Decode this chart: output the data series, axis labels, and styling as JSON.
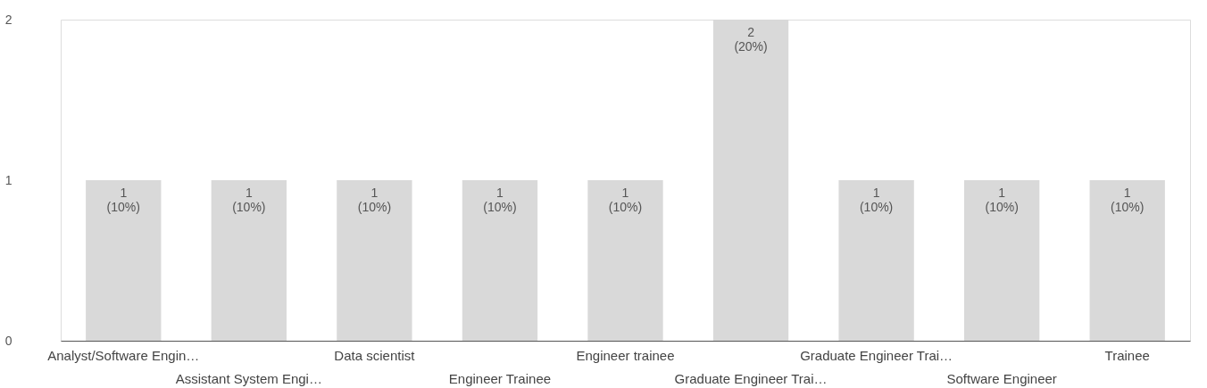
{
  "chart_data": {
    "type": "bar",
    "categories": [
      "Analyst/Software Engin…",
      "Assistant System Engi…",
      "Data scientist",
      "Engineer Trainee",
      "Engineer trainee",
      "Graduate Engineer Trai…",
      "Graduate Engineer Trai…",
      "Software Engineer",
      "Trainee"
    ],
    "values": [
      1,
      1,
      1,
      1,
      1,
      2,
      1,
      1,
      1
    ],
    "value_labels": [
      "1 (10%)",
      "1 (10%)",
      "1 (10%)",
      "1 (10%)",
      "1 (10%)",
      "2 (20%)",
      "1 (10%)",
      "1 (10%)",
      "1 (10%)"
    ],
    "color": "#d9d9d9",
    "ylim": [
      0,
      2
    ],
    "yticks": [
      0,
      1,
      2
    ],
    "grid": false
  }
}
